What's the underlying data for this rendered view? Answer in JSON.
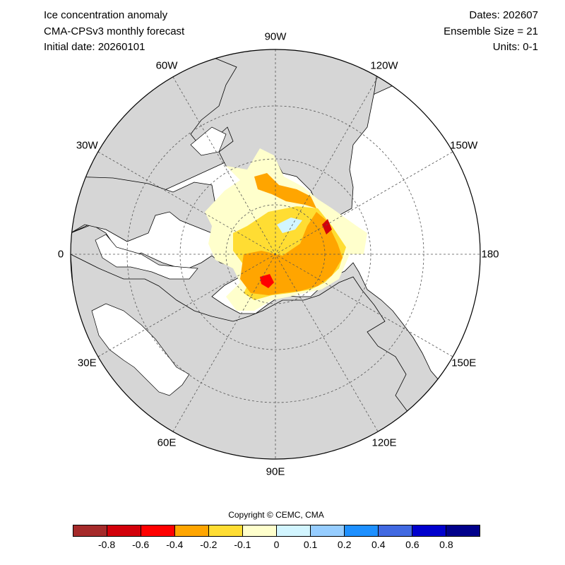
{
  "header": {
    "title": "Ice concentration anomaly",
    "model": "CMA-CPSv3 monthly forecast",
    "initial_date": "Initial date: 20260101",
    "dates": "Dates: 202607",
    "ensemble": "Ensemble Size = 21",
    "units": "Units: 0-1"
  },
  "map": {
    "projection": "north polar stereographic",
    "land_color": "#d6d6d6",
    "ocean_color": "#ffffff",
    "longitude_labels": [
      {
        "key": "lon_0",
        "text": "0",
        "angle": 180
      },
      {
        "key": "lon_30e",
        "text": "30E",
        "angle": 150
      },
      {
        "key": "lon_60e",
        "text": "60E",
        "angle": 120
      },
      {
        "key": "lon_90e",
        "text": "90E",
        "angle": 90
      },
      {
        "key": "lon_120e",
        "text": "120E",
        "angle": 60
      },
      {
        "key": "lon_150e",
        "text": "150E",
        "angle": 30
      },
      {
        "key": "lon_180",
        "text": "180",
        "angle": 0
      },
      {
        "key": "lon_150w",
        "text": "150W",
        "angle": -30
      },
      {
        "key": "lon_120w",
        "text": "120W",
        "angle": -60
      },
      {
        "key": "lon_90w",
        "text": "90W",
        "angle": -90
      },
      {
        "key": "lon_60w",
        "text": "60W",
        "angle": -120
      },
      {
        "key": "lon_30w",
        "text": "30W",
        "angle": -150
      }
    ]
  },
  "copyright": "Copyright © CEMC, CMA",
  "colorbar": {
    "colors": [
      "#a52a2a",
      "#d2000a",
      "#ff0000",
      "#ffa500",
      "#ffdd33",
      "#ffffcc",
      "#d2f5ff",
      "#96cdff",
      "#1e90ff",
      "#4169e1",
      "#0000cd",
      "#00008b"
    ],
    "labels": [
      "-0.8",
      "-0.6",
      "-0.4",
      "-0.2",
      "-0.1",
      "0",
      "0.1",
      "0.2",
      "0.4",
      "0.6",
      "0.8"
    ]
  }
}
